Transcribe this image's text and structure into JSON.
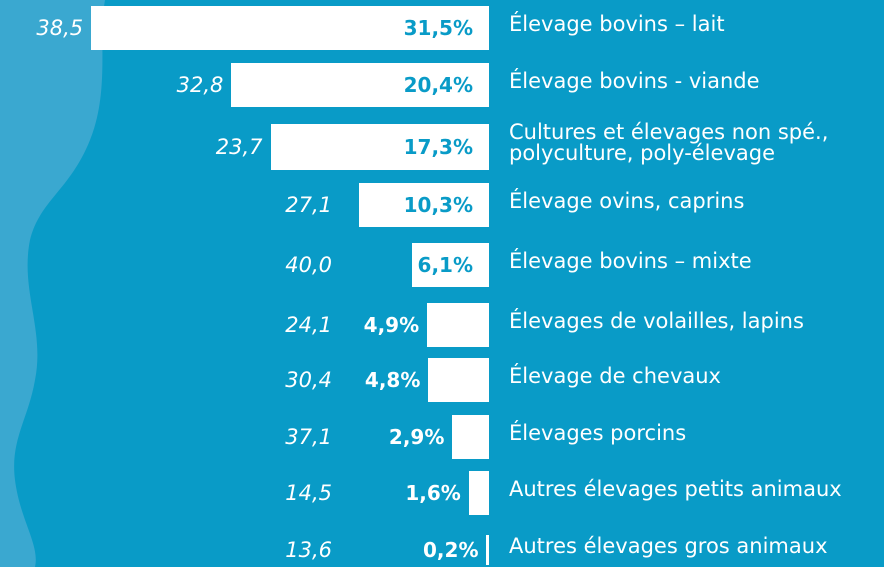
{
  "chart_data": {
    "type": "bar",
    "orientation": "horizontal",
    "categories": [
      "Élevage bovins – lait",
      "Élevage bovins - viande",
      "Cultures et élevages non spé.,\npolyculture, poly-élevage",
      "Élevage ovins, caprins",
      "Élevage bovins – mixte",
      "Élevages de volailles, lapins",
      "Élevage de chevaux",
      "Élevages  porcins",
      "Autres élevages petits animaux",
      "Autres élevages gros animaux"
    ],
    "values": [
      31.5,
      20.4,
      17.3,
      10.3,
      6.1,
      4.9,
      4.8,
      2.9,
      1.6,
      0.2
    ],
    "value_labels": [
      "31,5%",
      "20,4%",
      "17,3%",
      "10,3%",
      "6,1%",
      "4,9%",
      "4,8%",
      "2,9%",
      "1,6%",
      "0,2%"
    ],
    "other_values": [
      38.5,
      32.8,
      23.7,
      27.1,
      40.0,
      24.1,
      30.4,
      37.1,
      14.5,
      13.6
    ],
    "other_value_labels": [
      "38,5",
      "32,8",
      "23,7",
      "27,1",
      "40,0",
      "24,1",
      "30,4",
      "37,1",
      "14,5",
      "13,6"
    ],
    "color": "#ffffff"
  }
}
